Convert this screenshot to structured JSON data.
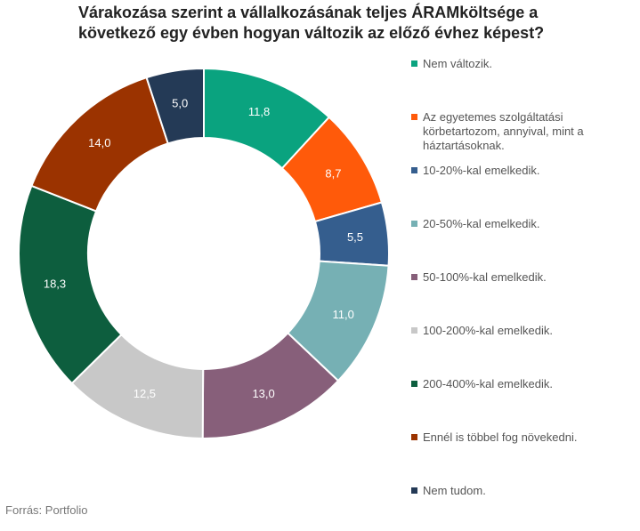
{
  "chart_data": {
    "type": "pie",
    "title": "Várakozása szerint a vállalkozásának teljes ÁRAMköltsége a következő egy évben hogyan változik az előző évhez képest?",
    "hole": true,
    "legend_position": "right",
    "categories": [
      "Nem változik.",
      "Az egyetemes szolgáltatási körbetartozom, annyival, mint a háztartásoknak.",
      "10-20%-kal emelkedik.",
      "20-50%-kal emelkedik.",
      "50-100%-kal emelkedik.",
      "100-200%-kal emelkedik.",
      "200-400%-kal emelkedik.",
      "Ennél is többel fog növekedni.",
      "Nem tudom."
    ],
    "values": [
      11.8,
      8.7,
      5.5,
      11.0,
      13.0,
      12.5,
      18.3,
      14.0,
      5.0
    ],
    "value_labels": [
      "11,8",
      "8,7",
      "5,5",
      "11,0",
      "13,0",
      "12,5",
      "18,3",
      "14,0",
      "5,0"
    ],
    "colors": [
      "#0aa37f",
      "#ff5a0a",
      "#355e8e",
      "#76b0b4",
      "#875f7a",
      "#c8c8c8",
      "#0d5e3e",
      "#9b3300",
      "#243a56"
    ]
  },
  "source": "Forrás: Portfolio"
}
